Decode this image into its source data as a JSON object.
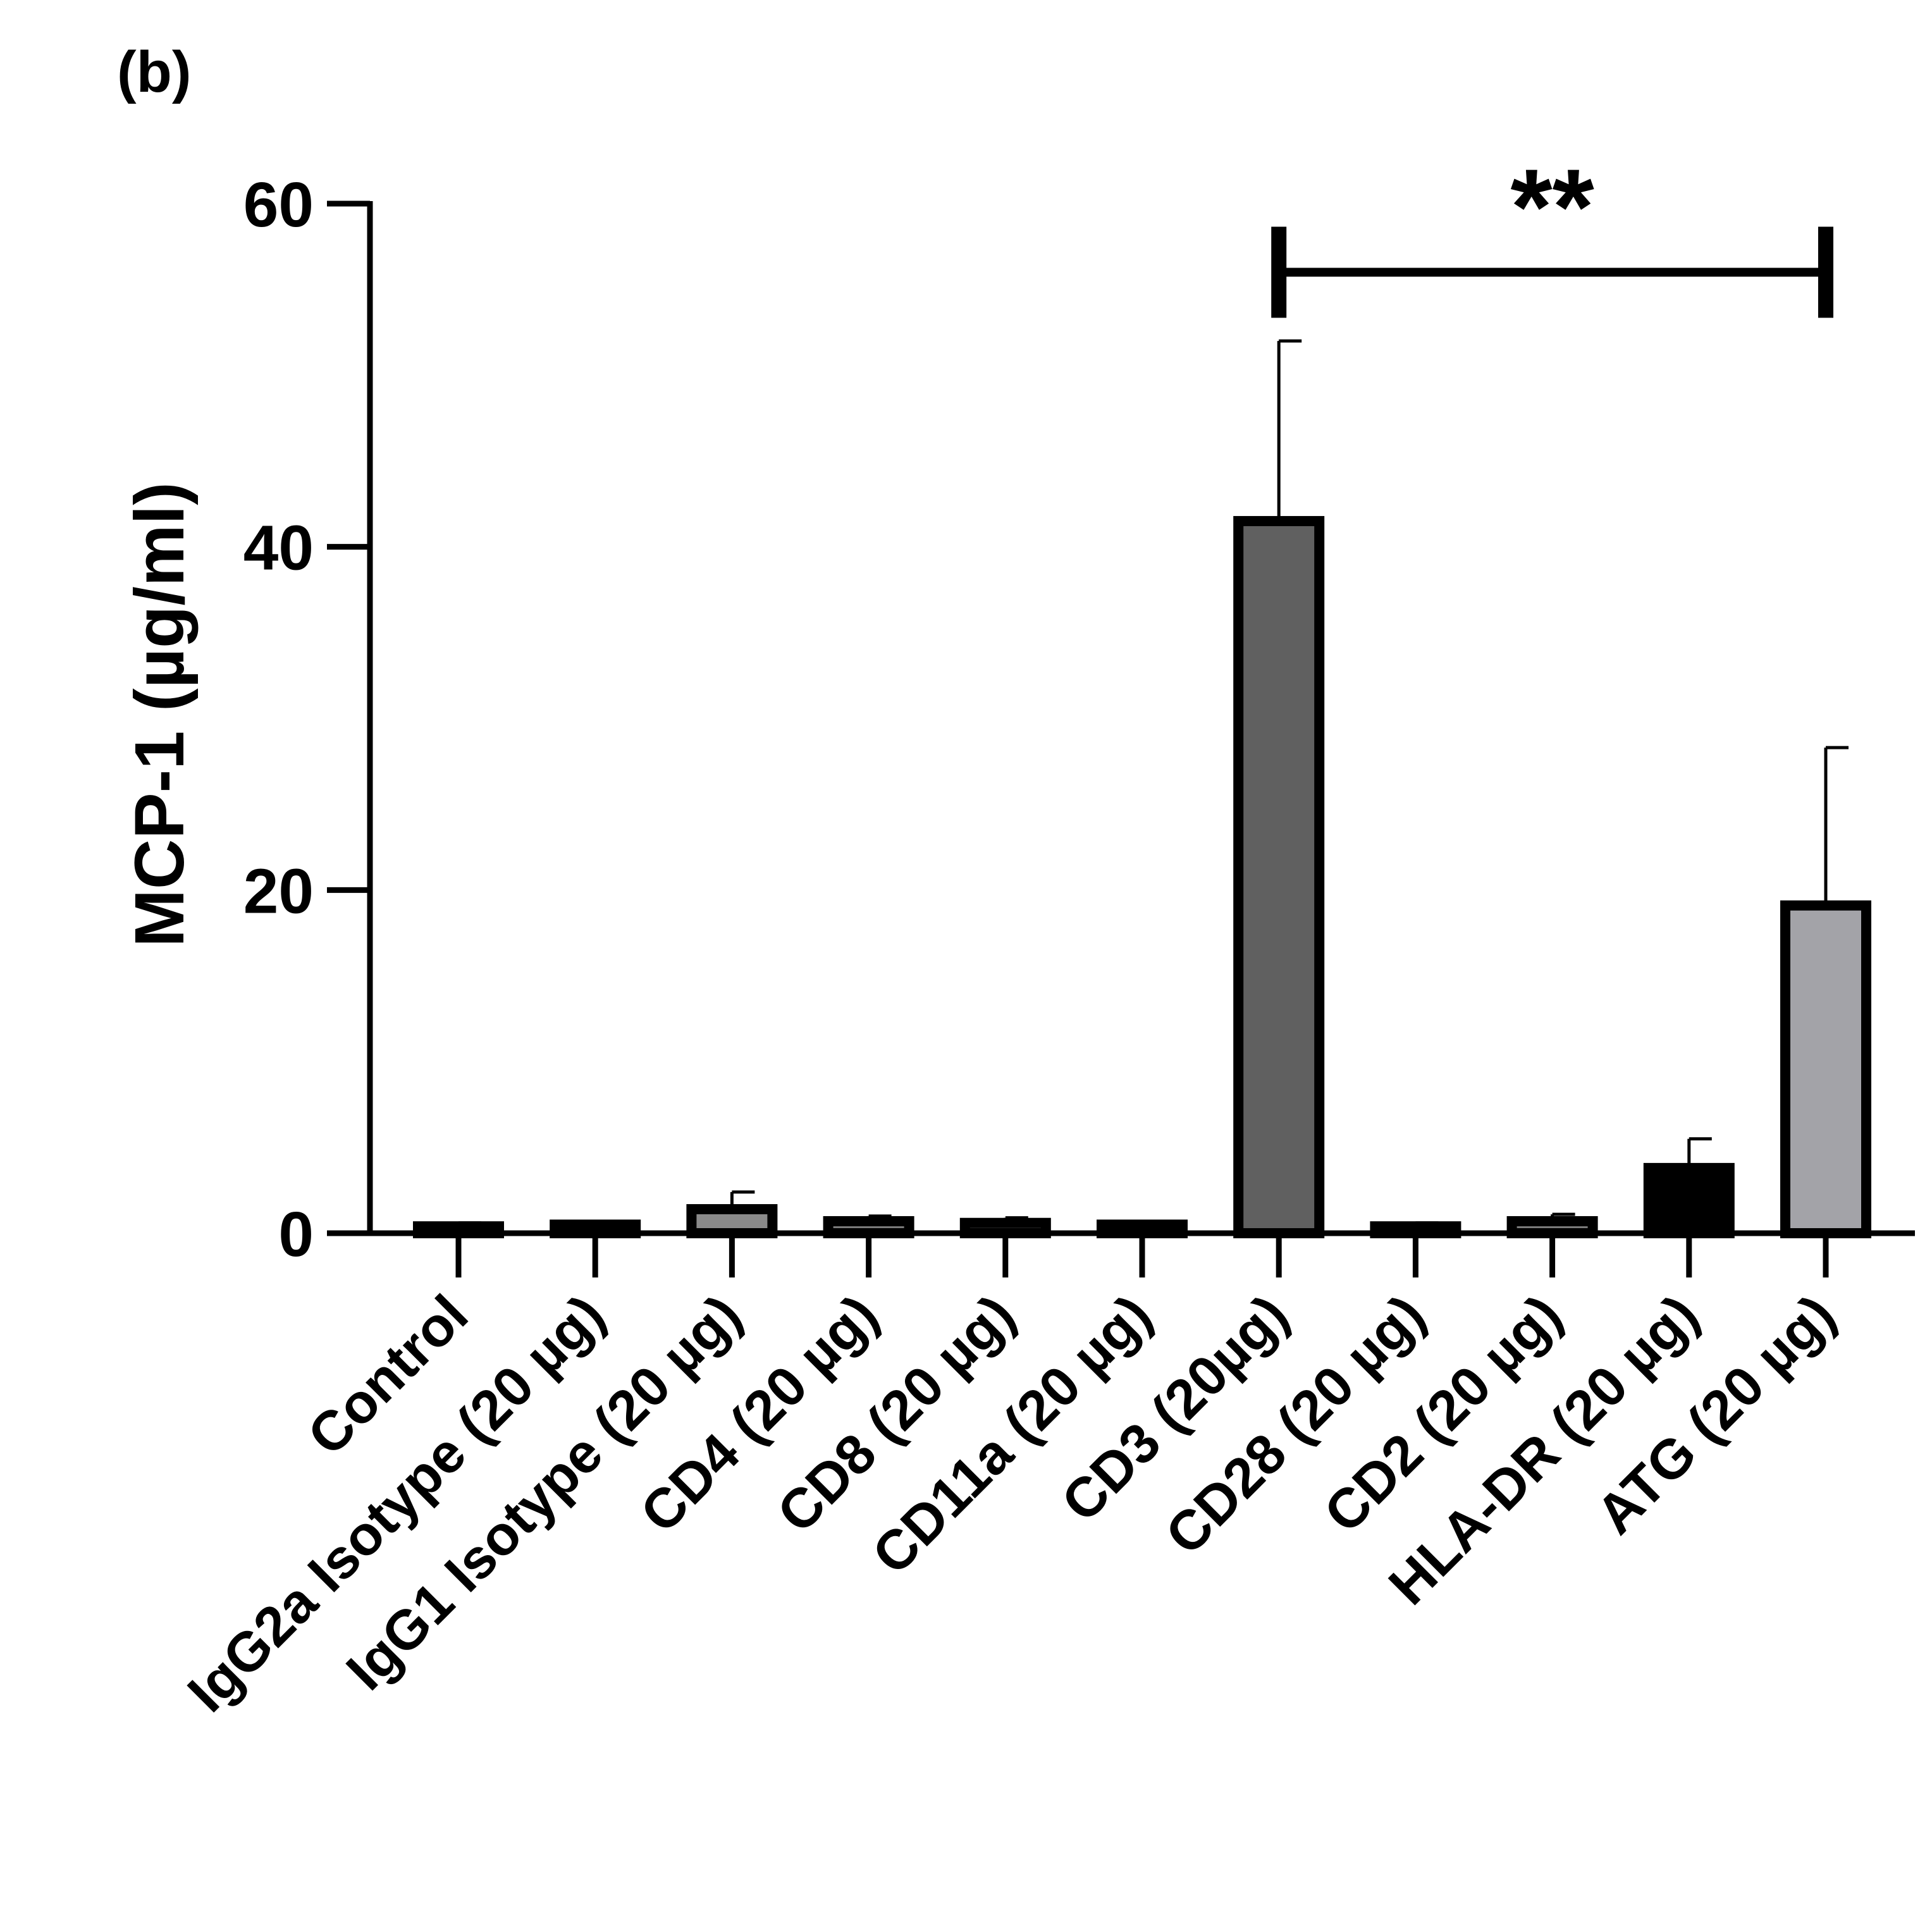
{
  "panel_label": "(b)",
  "chart_data": {
    "type": "bar",
    "title": "",
    "xlabel": "",
    "ylabel": "MCP-1 (µg/ml)",
    "ylim": [
      0,
      60
    ],
    "yticks": [
      "0",
      "20",
      "40",
      "60"
    ],
    "yticks_values": [
      0,
      20,
      40,
      60
    ],
    "categories": [
      "Control",
      "IgG2a Isotype (20 µg)",
      "IgG1 Isotype (20 µg)",
      "CD4 (20 µg)",
      "CD8 (20 µg)",
      "CD11a (20 µg)",
      "CD3 (20µg)",
      "CD28 (20 µg)",
      "CD2 (20 µg)",
      "HLA-DR (20 µg)",
      "ATG (20 µg)"
    ],
    "values": [
      0.4,
      0.5,
      1.4,
      0.7,
      0.6,
      0.5,
      41.5,
      0.4,
      0.7,
      3.8,
      19.1
    ],
    "errors": [
      0.2,
      0.2,
      1.0,
      0.3,
      0.3,
      0.2,
      10.5,
      0.2,
      0.4,
      1.7,
      9.2
    ],
    "bar_colors": [
      "#7a7a7a",
      "#7a7a7a",
      "#8a8a8a",
      "#7a7a7a",
      "#7a7a7a",
      "#7a7a7a",
      "#606060",
      "#7a7a7a",
      "#7a7a7a",
      "#000000",
      "#a3a3a8"
    ],
    "annotation": {
      "text": "**",
      "from_category": "CD3 (20µg)",
      "to_category": "ATG (20 µg)",
      "y_value": 56
    },
    "grid": false,
    "legend": "none"
  }
}
